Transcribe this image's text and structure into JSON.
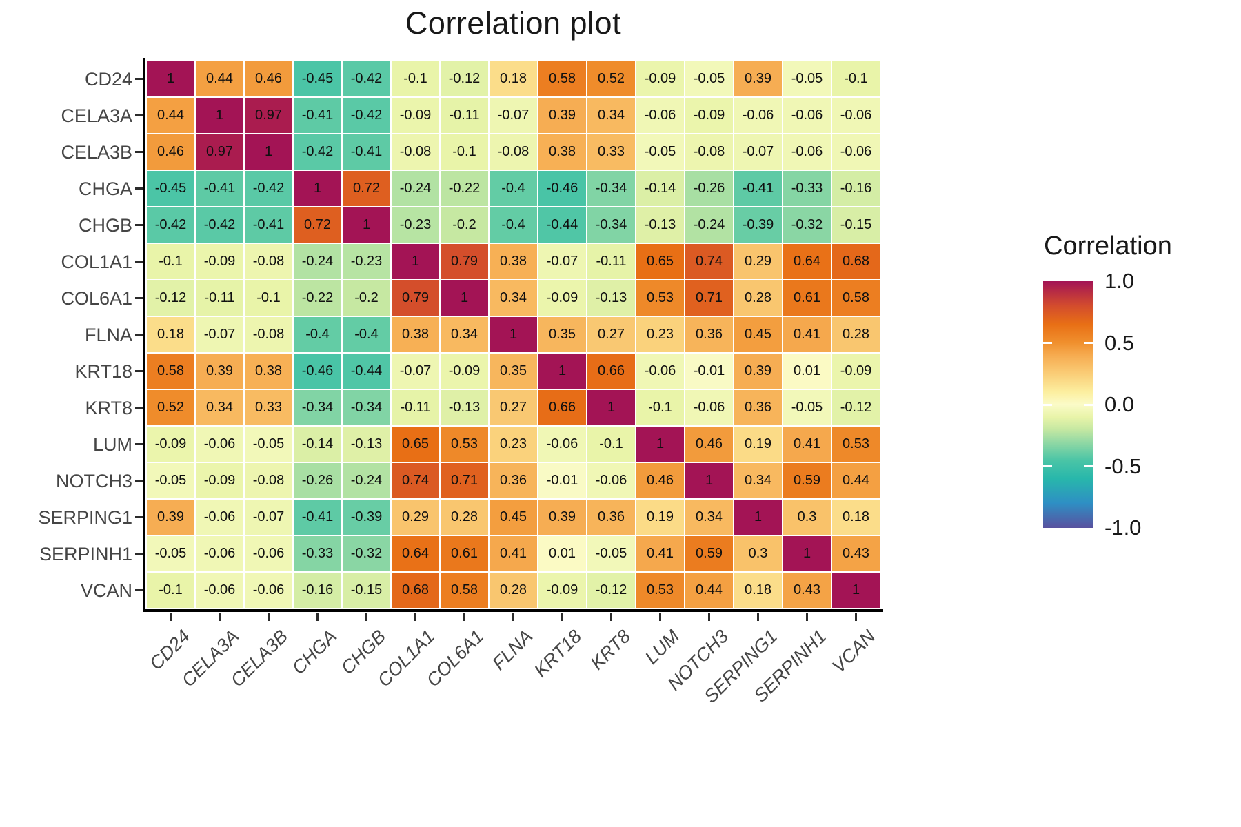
{
  "title": "Correlation plot",
  "legend": {
    "title": "Correlation",
    "ticks": [
      "1.0",
      "0.5",
      "0.0",
      "-0.5",
      "-1.0"
    ]
  },
  "chart_data": {
    "type": "heatmap",
    "title": "Correlation plot",
    "categories": [
      "CD24",
      "CELA3A",
      "CELA3B",
      "CHGA",
      "CHGB",
      "COL1A1",
      "COL6A1",
      "FLNA",
      "KRT18",
      "KRT8",
      "LUM",
      "NOTCH3",
      "SERPING1",
      "SERPINH1",
      "VCAN"
    ],
    "matrix": [
      [
        1,
        0.44,
        0.46,
        -0.45,
        -0.42,
        -0.1,
        -0.12,
        0.18,
        0.58,
        0.52,
        -0.09,
        -0.05,
        0.39,
        -0.05,
        -0.1
      ],
      [
        0.44,
        1,
        0.97,
        -0.41,
        -0.42,
        -0.09,
        -0.11,
        -0.07,
        0.39,
        0.34,
        -0.06,
        -0.09,
        -0.06,
        -0.06,
        -0.06
      ],
      [
        0.46,
        0.97,
        1,
        -0.42,
        -0.41,
        -0.08,
        -0.1,
        -0.08,
        0.38,
        0.33,
        -0.05,
        -0.08,
        -0.07,
        -0.06,
        -0.06
      ],
      [
        -0.45,
        -0.41,
        -0.42,
        1,
        0.72,
        -0.24,
        -0.22,
        -0.4,
        -0.46,
        -0.34,
        -0.14,
        -0.26,
        -0.41,
        -0.33,
        -0.16
      ],
      [
        -0.42,
        -0.42,
        -0.41,
        0.72,
        1,
        -0.23,
        -0.2,
        -0.4,
        -0.44,
        -0.34,
        -0.13,
        -0.24,
        -0.39,
        -0.32,
        -0.15
      ],
      [
        -0.1,
        -0.09,
        -0.08,
        -0.24,
        -0.23,
        1,
        0.79,
        0.38,
        -0.07,
        -0.11,
        0.65,
        0.74,
        0.29,
        0.64,
        0.68
      ],
      [
        -0.12,
        -0.11,
        -0.1,
        -0.22,
        -0.2,
        0.79,
        1,
        0.34,
        -0.09,
        -0.13,
        0.53,
        0.71,
        0.28,
        0.61,
        0.58
      ],
      [
        0.18,
        -0.07,
        -0.08,
        -0.4,
        -0.4,
        0.38,
        0.34,
        1,
        0.35,
        0.27,
        0.23,
        0.36,
        0.45,
        0.41,
        0.28
      ],
      [
        0.58,
        0.39,
        0.38,
        -0.46,
        -0.44,
        -0.07,
        -0.09,
        0.35,
        1,
        0.66,
        -0.06,
        -0.01,
        0.39,
        0.01,
        -0.09
      ],
      [
        0.52,
        0.34,
        0.33,
        -0.34,
        -0.34,
        -0.11,
        -0.13,
        0.27,
        0.66,
        1,
        -0.1,
        -0.06,
        0.36,
        -0.05,
        -0.12
      ],
      [
        -0.09,
        -0.06,
        -0.05,
        -0.14,
        -0.13,
        0.65,
        0.53,
        0.23,
        -0.06,
        -0.1,
        1,
        0.46,
        0.19,
        0.41,
        0.53
      ],
      [
        -0.05,
        -0.09,
        -0.08,
        -0.26,
        -0.24,
        0.74,
        0.71,
        0.36,
        -0.01,
        -0.06,
        0.46,
        1,
        0.34,
        0.59,
        0.44
      ],
      [
        0.39,
        -0.06,
        -0.07,
        -0.41,
        -0.39,
        0.29,
        0.28,
        0.45,
        0.39,
        0.36,
        0.19,
        0.34,
        1,
        0.3,
        0.18
      ],
      [
        -0.05,
        -0.06,
        -0.06,
        -0.33,
        -0.32,
        0.64,
        0.61,
        0.41,
        0.01,
        -0.05,
        0.41,
        0.59,
        0.3,
        1,
        0.43
      ],
      [
        -0.1,
        -0.06,
        -0.06,
        -0.16,
        -0.15,
        0.68,
        0.58,
        0.28,
        -0.09,
        -0.12,
        0.53,
        0.44,
        0.18,
        0.43,
        1
      ]
    ],
    "colorbar": {
      "title": "Correlation",
      "min": -1,
      "max": 1,
      "tick_values": [
        1.0,
        0.5,
        0.0,
        -0.5,
        -1.0
      ],
      "stops": [
        {
          "v": 1.0,
          "c": "#A31455"
        },
        {
          "v": 0.8,
          "c": "#D34C2D"
        },
        {
          "v": 0.65,
          "c": "#E86F15"
        },
        {
          "v": 0.5,
          "c": "#F0902E"
        },
        {
          "v": 0.4,
          "c": "#F6AB50"
        },
        {
          "v": 0.25,
          "c": "#FACD77"
        },
        {
          "v": 0.1,
          "c": "#FCEFA0"
        },
        {
          "v": 0.0,
          "c": "#FBFBC8"
        },
        {
          "v": -0.1,
          "c": "#E9F4A9"
        },
        {
          "v": -0.2,
          "c": "#C6E8A2"
        },
        {
          "v": -0.3,
          "c": "#94D9A4"
        },
        {
          "v": -0.45,
          "c": "#4BC5A6"
        },
        {
          "v": -0.6,
          "c": "#28B7AB"
        },
        {
          "v": -0.8,
          "c": "#2E8FC4"
        },
        {
          "v": -1.0,
          "c": "#59519F"
        }
      ]
    },
    "legend_position": "right",
    "grid": false,
    "axis_label_style": {
      "x": "italic, rotated 45deg",
      "y": "upright"
    }
  }
}
